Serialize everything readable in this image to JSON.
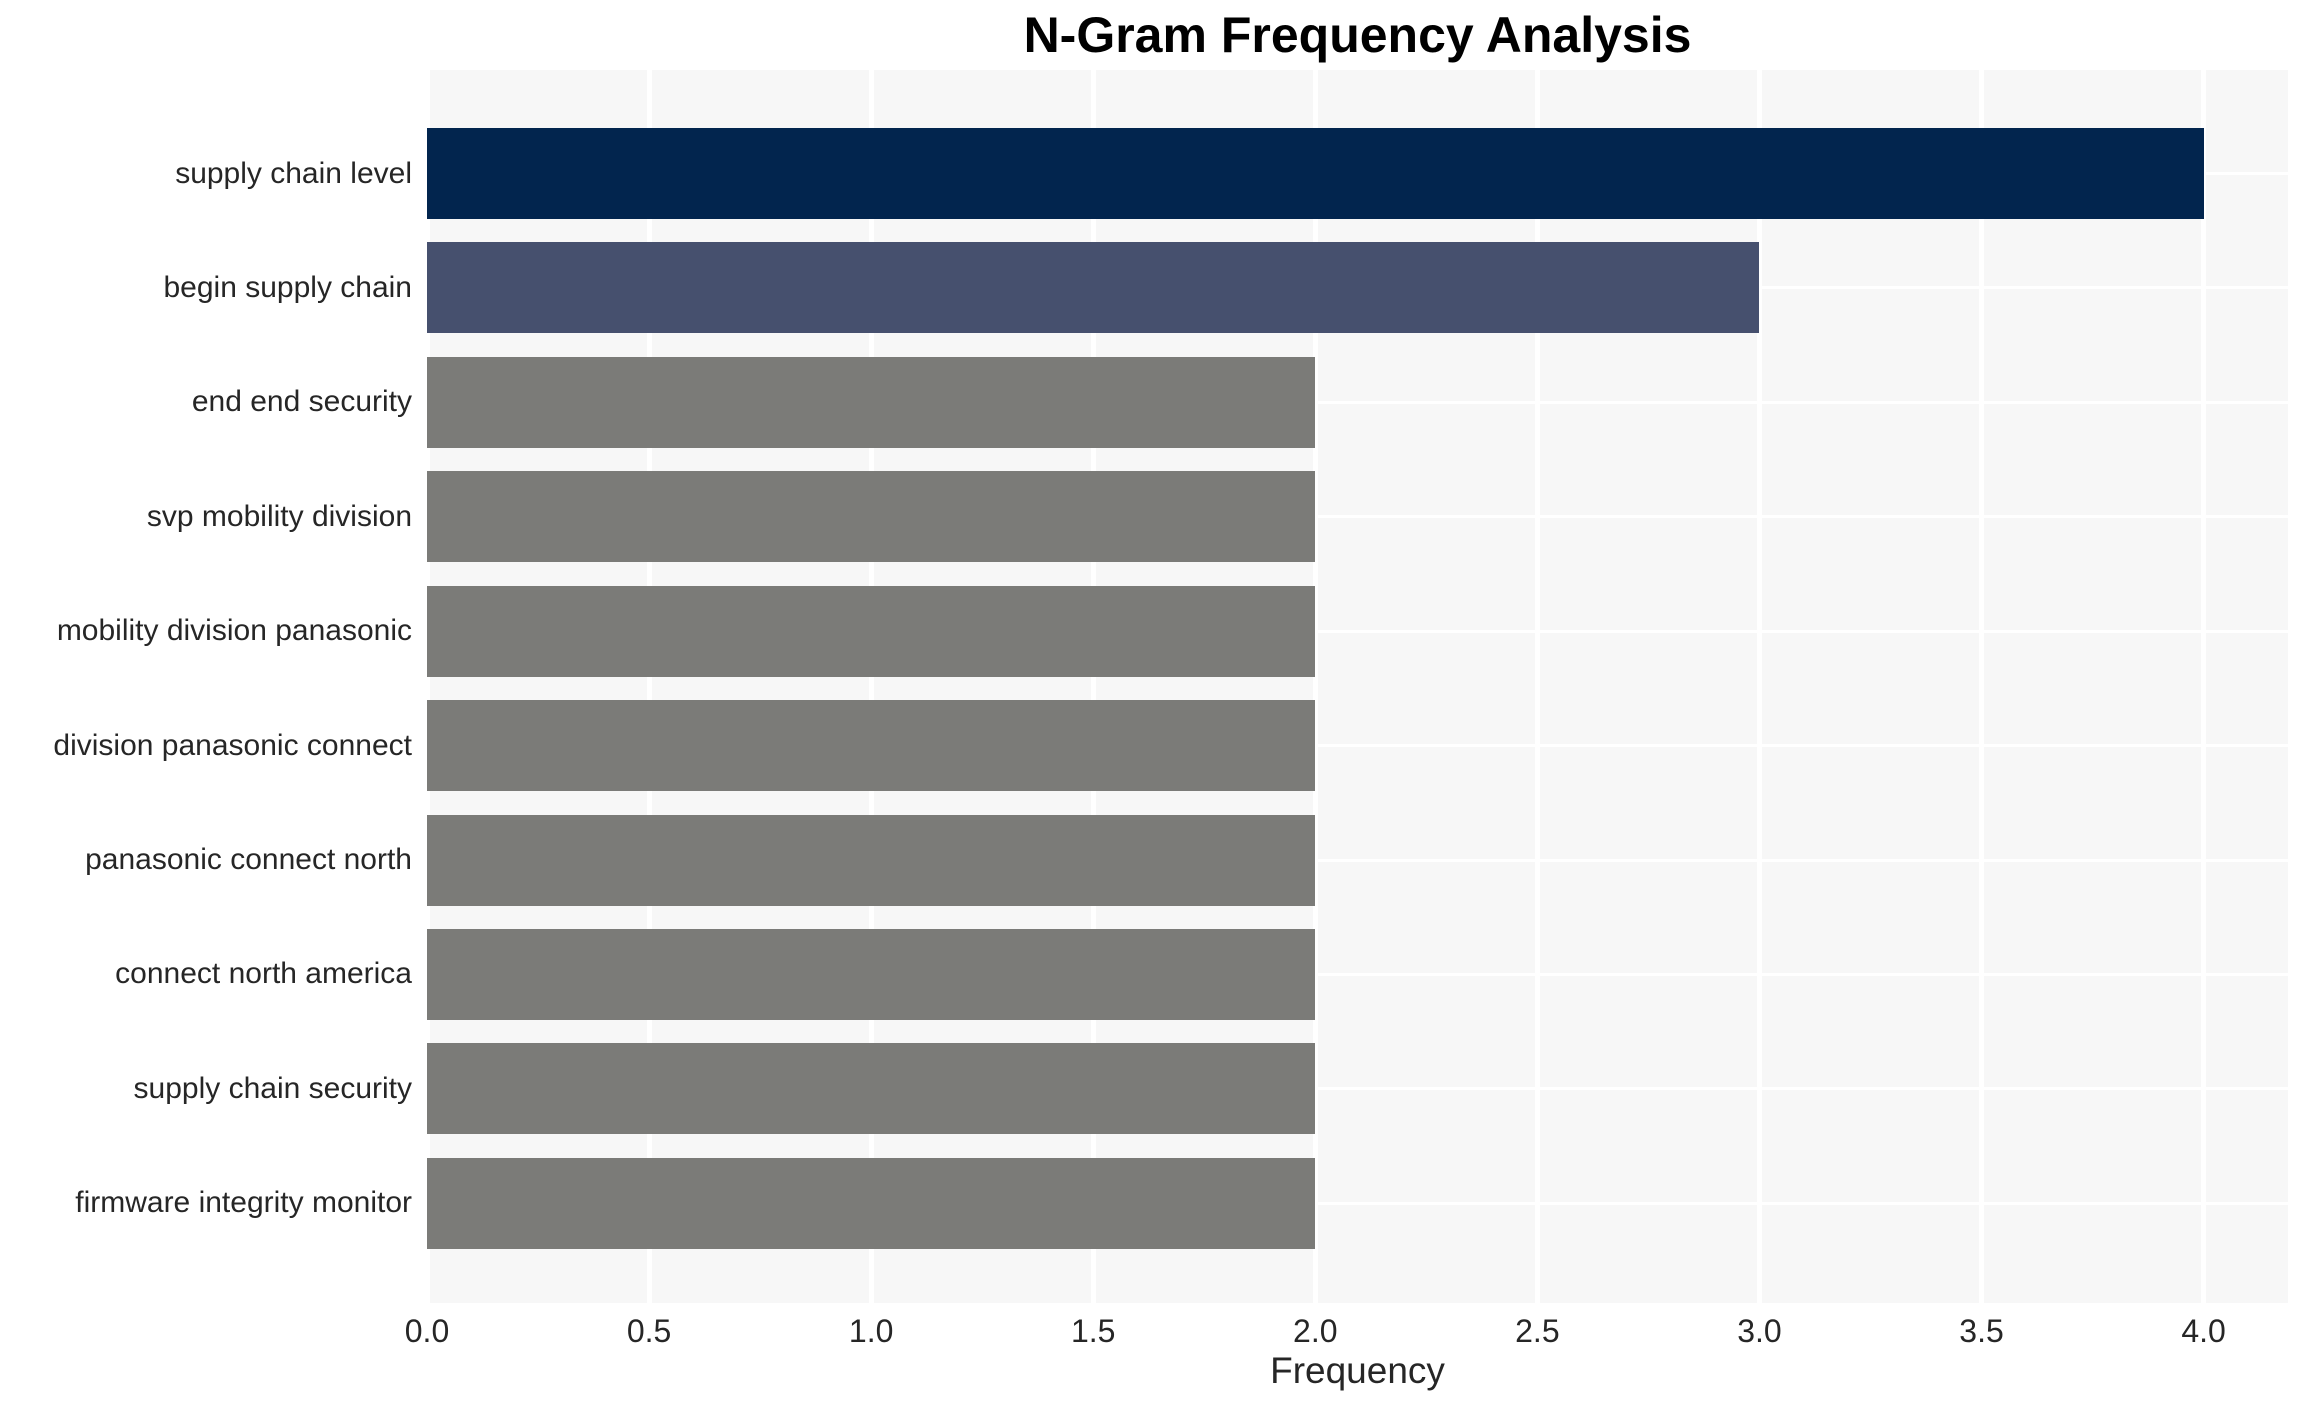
{
  "chart_data": {
    "type": "bar",
    "orientation": "horizontal",
    "title": "N-Gram Frequency Analysis",
    "xlabel": "Frequency",
    "ylabel": "",
    "categories": [
      "supply chain level",
      "begin supply chain",
      "end end security",
      "svp mobility division",
      "mobility division panasonic",
      "division panasonic connect",
      "panasonic connect north",
      "connect north america",
      "supply chain security",
      "firmware integrity monitor"
    ],
    "values": [
      4,
      3,
      2,
      2,
      2,
      2,
      2,
      2,
      2,
      2
    ],
    "bar_colors": [
      "#02254E",
      "#46506E",
      "#7B7B78",
      "#7B7B78",
      "#7B7B78",
      "#7B7B78",
      "#7B7B78",
      "#7B7B78",
      "#7B7B78",
      "#7B7B78"
    ],
    "xlim": [
      0,
      4.19
    ],
    "xtick_labels": [
      "0.0",
      "0.5",
      "1.0",
      "1.5",
      "2.0",
      "2.5",
      "3.0",
      "3.5",
      "4.0"
    ],
    "xtick_values": [
      0,
      0.5,
      1.0,
      1.5,
      2.0,
      2.5,
      3.0,
      3.5,
      4.0
    ],
    "grid": true,
    "legend": false,
    "colors": {
      "plot_background": "#F7F7F7",
      "figure_background": "#FFFFFF",
      "gridline": "#FFFFFF",
      "tick_text": "#262626",
      "title_text": "#000000"
    }
  }
}
